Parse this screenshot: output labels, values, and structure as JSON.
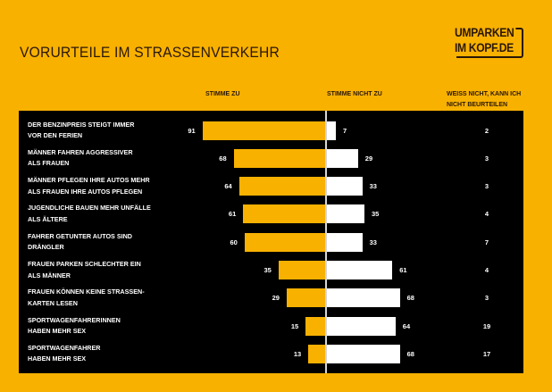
{
  "header": {
    "title": "VORURTEILE IM STRASSENVERKEHR",
    "logo_line1": "UMPARKEN",
    "logo_line2": "IM KOPF.DE"
  },
  "colors": {
    "background": "#F9B100",
    "panel": "#000000",
    "agree": "#F9B100",
    "disagree": "#FFFFFF"
  },
  "chart_data": {
    "type": "bar",
    "subtype": "diverging-horizontal",
    "title": "VORURTEILE IM STRASSENVERKEHR",
    "column_headers": {
      "agree": "STIMME ZU",
      "disagree": "STIMME  NICHT ZU",
      "dont_know_line1": "WEISS NICHT, KANN ICH",
      "dont_know_line2": "NICHT BEURTEILEN"
    },
    "categories": [
      [
        "DER BENZINPREIS STEIGT IMMER",
        "VOR DEN FERIEN"
      ],
      [
        "MÄNNER FAHREN AGGRESSIVER",
        "ALS FRAUEN"
      ],
      [
        "MÄNNER PFLEGEN IHRE AUTOS MEHR",
        "ALS FRAUEN IHRE AUTOS PFLEGEN"
      ],
      [
        "JUGENDLICHE BAUEN MEHR UNFÄLLE",
        "ALS ÄLTERE"
      ],
      [
        "FAHRER GETUNTER AUTOS SIND",
        "DRÄNGLER"
      ],
      [
        "FRAUEN PARKEN SCHLECHTER EIN",
        "ALS MÄNNER"
      ],
      [
        "FRAUEN KÖNNEN KEINE STRASSEN-",
        "KARTEN LESEN"
      ],
      [
        "SPORTWAGENFAHRERINNEN",
        "HABEN MEHR SEX"
      ],
      [
        "SPORTWAGENFAHRER",
        "HABEN MEHR SEX"
      ]
    ],
    "series": [
      {
        "name": "STIMME ZU",
        "values": [
          91,
          68,
          64,
          61,
          60,
          35,
          29,
          15,
          13
        ]
      },
      {
        "name": "STIMME NICHT ZU",
        "values": [
          7,
          29,
          33,
          35,
          33,
          61,
          68,
          64,
          68
        ]
      },
      {
        "name": "WEISS NICHT, KANN ICH NICHT BEURTEILEN",
        "values": [
          2,
          3,
          3,
          4,
          7,
          4,
          3,
          19,
          17
        ]
      }
    ],
    "unit": "%",
    "xlabel": "",
    "ylabel": "",
    "grid": false,
    "legend": "column-headers-top"
  }
}
